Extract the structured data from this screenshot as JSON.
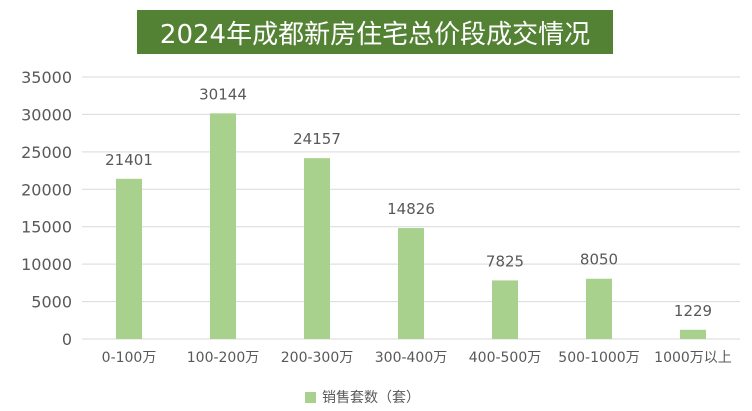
{
  "title": "2024年成都新房住宅总价段成交情况",
  "colors": {
    "title_bg": "#548235",
    "bar": "#a9d18e",
    "grid": "#d9d9d9",
    "text": "#595959"
  },
  "chart_data": {
    "type": "bar",
    "categories": [
      "0-100万",
      "100-200万",
      "200-300万",
      "300-400万",
      "400-500万",
      "500-1000万",
      "1000万以上"
    ],
    "series": [
      {
        "name": "销售套数（套）",
        "values": [
          21401,
          30144,
          24157,
          14826,
          7825,
          8050,
          1229
        ]
      }
    ],
    "ylim": [
      0,
      35000
    ],
    "yticks": [
      0,
      5000,
      10000,
      15000,
      20000,
      25000,
      30000,
      35000
    ],
    "grid": true,
    "data_labels": true,
    "legend_position": "bottom"
  }
}
